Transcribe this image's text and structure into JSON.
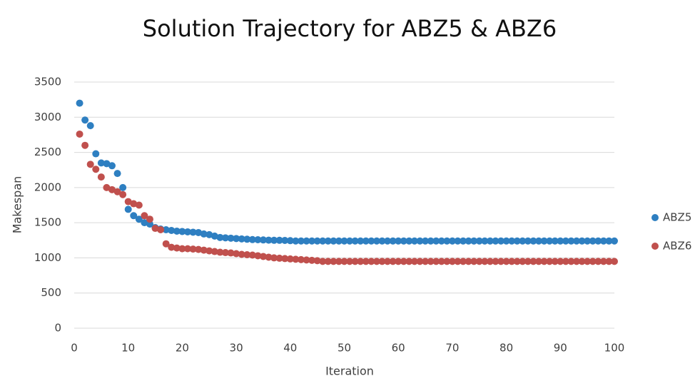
{
  "chart_data": {
    "type": "scatter",
    "title": "Solution Trajectory for ABZ5 & ABZ6",
    "xlabel": "Iteration",
    "ylabel": "Makespan",
    "xlim": [
      0,
      100
    ],
    "xticks": [
      0,
      10,
      20,
      30,
      40,
      50,
      60,
      70,
      80,
      90,
      100
    ],
    "ylim": [
      0,
      3500
    ],
    "yticks": [
      0,
      500,
      1000,
      1500,
      2000,
      2500,
      3000,
      3500
    ],
    "grid": true,
    "legend": "right",
    "x": [
      1,
      2,
      3,
      4,
      5,
      6,
      7,
      8,
      9,
      10,
      11,
      12,
      13,
      14,
      15,
      16,
      17,
      18,
      19,
      20,
      21,
      22,
      23,
      24,
      25,
      26,
      27,
      28,
      29,
      30,
      31,
      32,
      33,
      34,
      35,
      36,
      37,
      38,
      39,
      40,
      41,
      42,
      43,
      44,
      45,
      46,
      47,
      48,
      49,
      50,
      51,
      52,
      53,
      54,
      55,
      56,
      57,
      58,
      59,
      60,
      61,
      62,
      63,
      64,
      65,
      66,
      67,
      68,
      69,
      70,
      71,
      72,
      73,
      74,
      75,
      76,
      77,
      78,
      79,
      80,
      81,
      82,
      83,
      84,
      85,
      86,
      87,
      88,
      89,
      90,
      91,
      92,
      93,
      94,
      95,
      96,
      97,
      98,
      99,
      100
    ],
    "series": [
      {
        "name": "ABZ5",
        "color": "#2e7fc1",
        "values": [
          3200,
          2960,
          2880,
          2480,
          2350,
          2340,
          2310,
          2200,
          2000,
          1690,
          1600,
          1550,
          1500,
          1480,
          1430,
          1410,
          1400,
          1390,
          1380,
          1375,
          1370,
          1365,
          1360,
          1340,
          1330,
          1310,
          1290,
          1285,
          1280,
          1275,
          1270,
          1265,
          1260,
          1258,
          1255,
          1252,
          1250,
          1250,
          1248,
          1245,
          1240,
          1240,
          1240,
          1240,
          1240,
          1240,
          1240,
          1240,
          1240,
          1240,
          1240,
          1240,
          1240,
          1240,
          1240,
          1240,
          1240,
          1240,
          1240,
          1240,
          1240,
          1240,
          1240,
          1240,
          1240,
          1240,
          1240,
          1240,
          1240,
          1240,
          1240,
          1240,
          1240,
          1240,
          1240,
          1240,
          1240,
          1240,
          1240,
          1240,
          1240,
          1240,
          1240,
          1240,
          1240,
          1240,
          1240,
          1240,
          1240,
          1240,
          1240,
          1240,
          1240,
          1240,
          1240,
          1240,
          1240,
          1240,
          1240,
          1240
        ]
      },
      {
        "name": "ABZ6",
        "color": "#c0504d",
        "values": [
          2760,
          2600,
          2330,
          2260,
          2150,
          2000,
          1970,
          1940,
          1900,
          1800,
          1770,
          1750,
          1600,
          1550,
          1420,
          1400,
          1200,
          1150,
          1140,
          1130,
          1130,
          1125,
          1120,
          1110,
          1100,
          1090,
          1080,
          1075,
          1070,
          1060,
          1050,
          1045,
          1040,
          1030,
          1020,
          1010,
          1000,
          995,
          990,
          985,
          980,
          975,
          970,
          965,
          960,
          950,
          950,
          950,
          950,
          950,
          950,
          950,
          950,
          950,
          950,
          950,
          950,
          950,
          950,
          950,
          950,
          950,
          950,
          950,
          950,
          950,
          950,
          950,
          950,
          950,
          950,
          950,
          950,
          950,
          950,
          950,
          950,
          950,
          950,
          950,
          950,
          950,
          950,
          950,
          950,
          950,
          950,
          950,
          950,
          950,
          950,
          950,
          950,
          950,
          950,
          950,
          950,
          950,
          950,
          950
        ]
      }
    ]
  }
}
